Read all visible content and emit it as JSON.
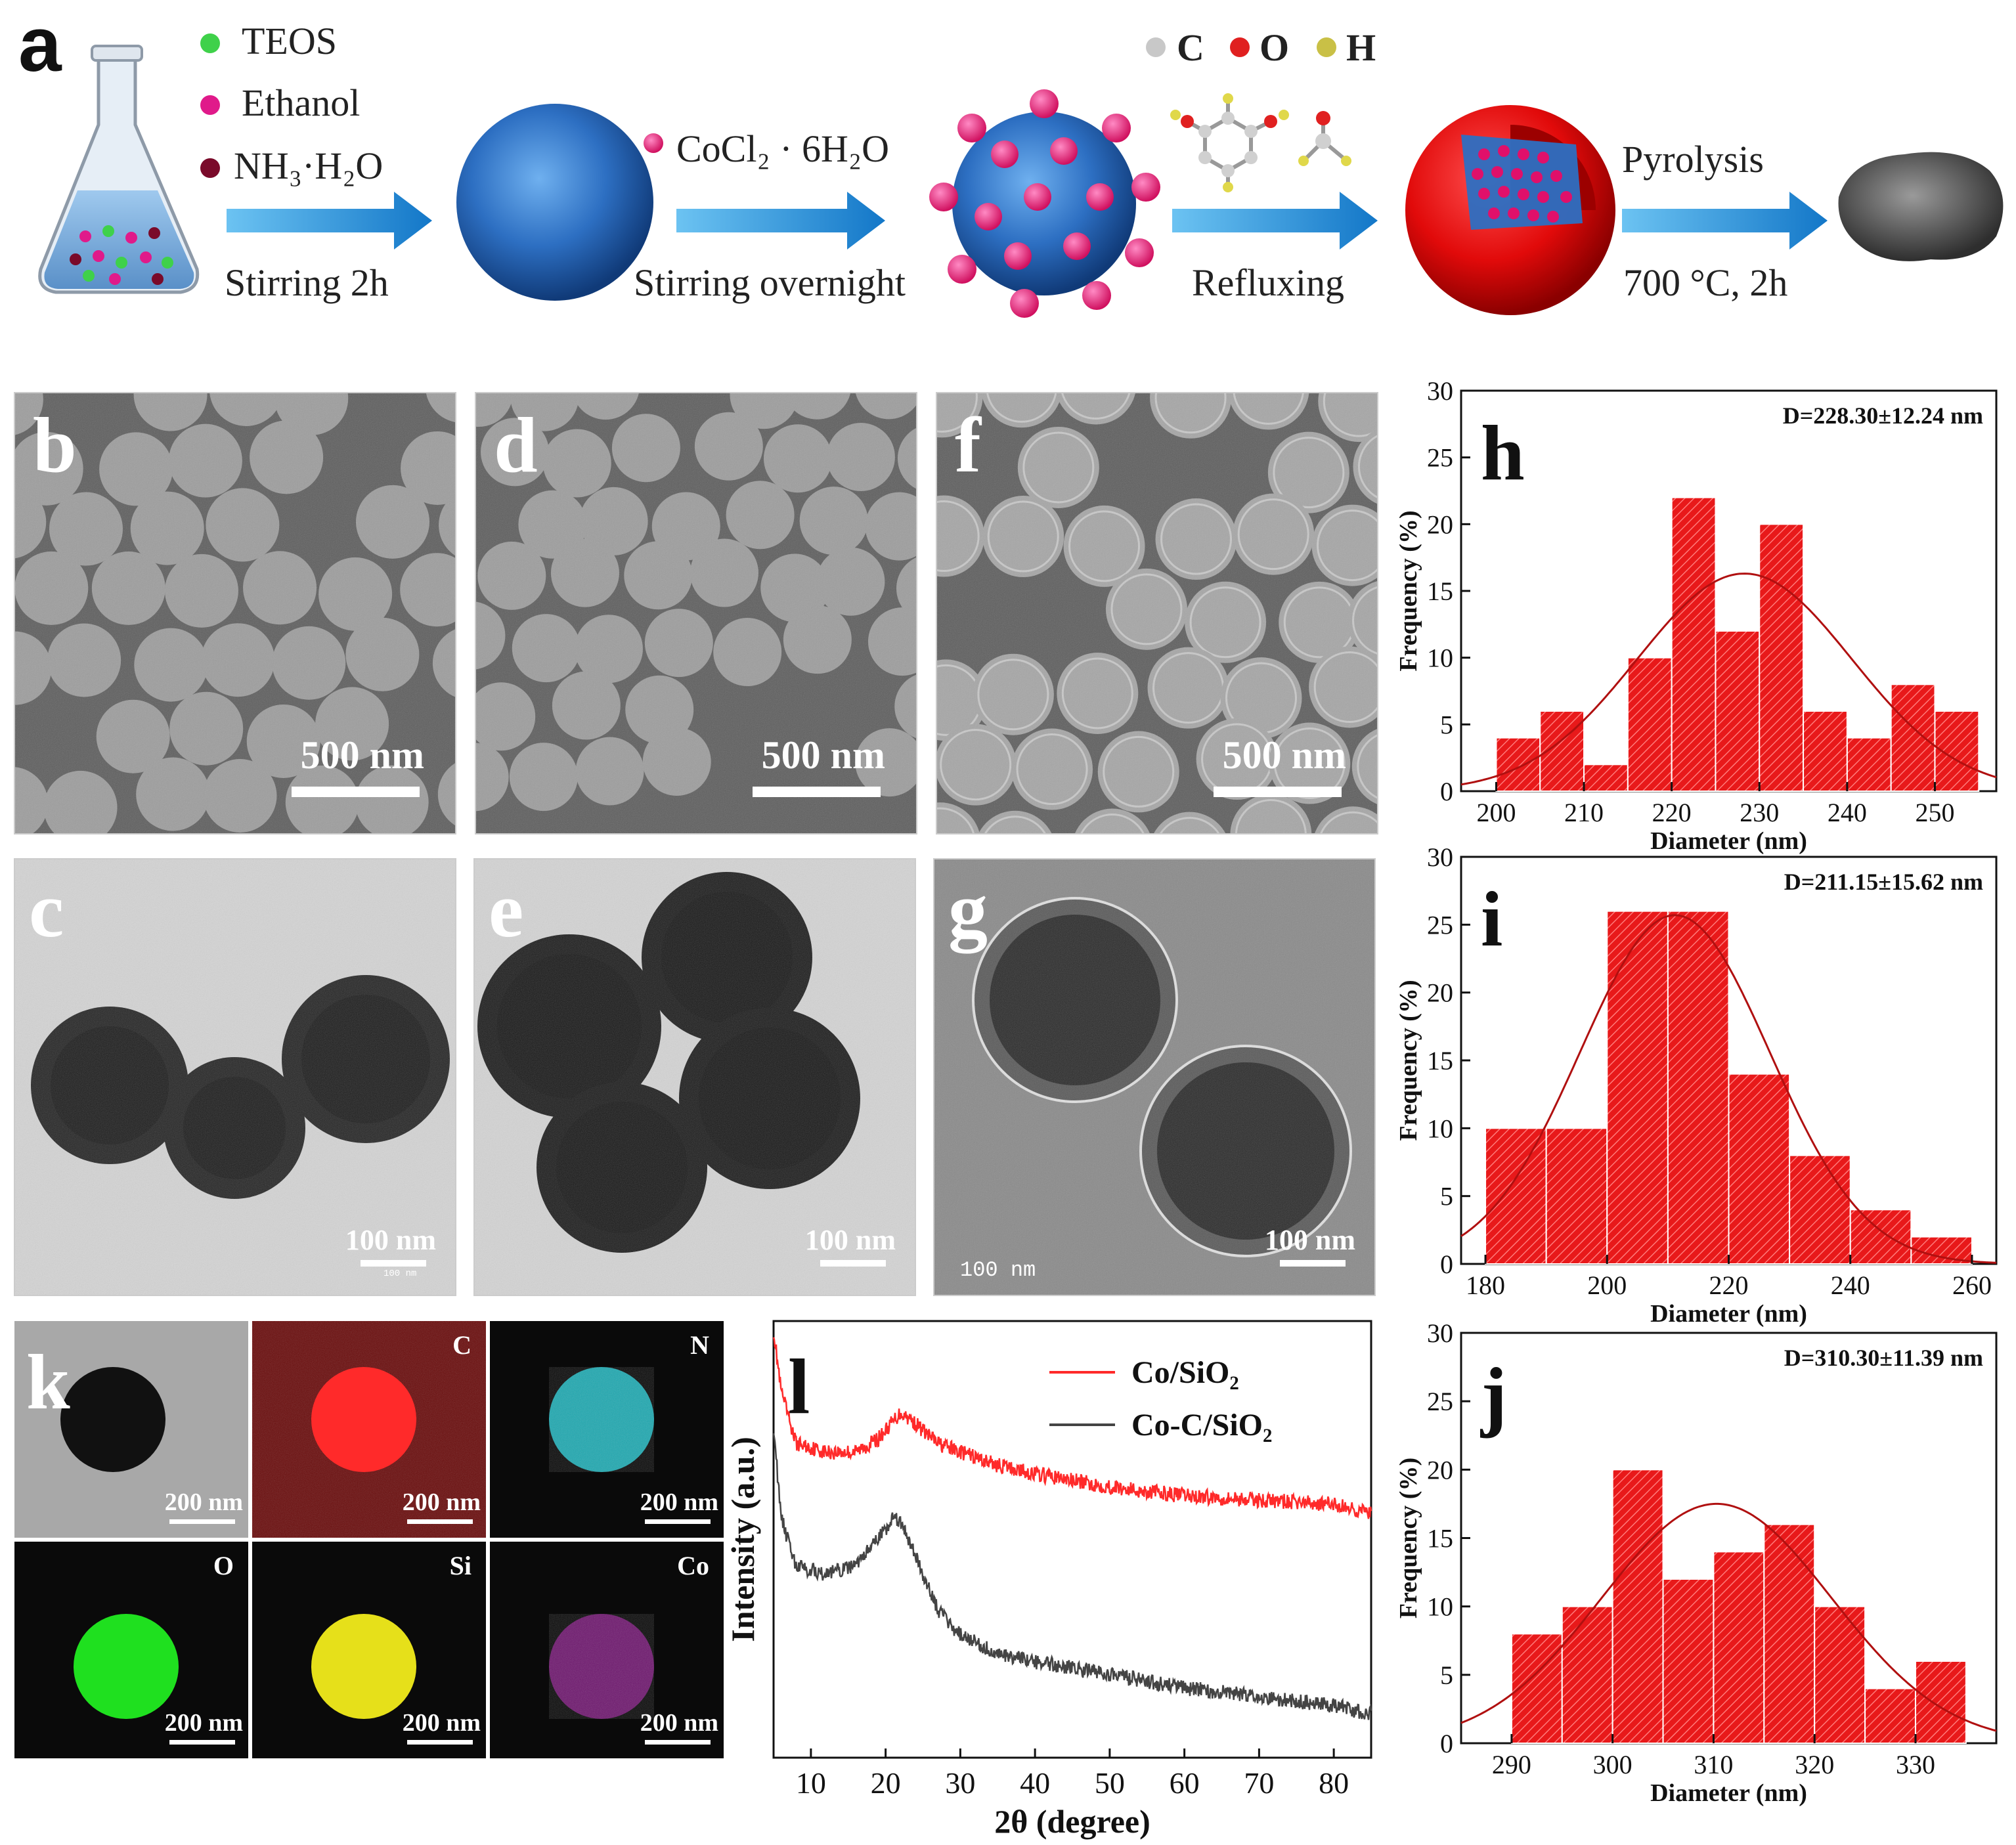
{
  "scheme": {
    "panel_letter": "a",
    "legend_reagents": [
      "TEOS",
      "Ethanol",
      "NH₃·H₂O"
    ],
    "reagent_colors": [
      "#3fd14a",
      "#e01a8a",
      "#7a0a2a"
    ],
    "step1_label": "Stirring 2h",
    "cocl2_label": "CoCl₂ · 6H₂O",
    "step2_label": "Stirring overnight",
    "atom_legend": [
      "C",
      "O",
      "H"
    ],
    "atom_colors": [
      "#c8c8c8",
      "#e02020",
      "#c9c046"
    ],
    "step3_label": "Refluxing",
    "step4_top_label": "Pyrolysis",
    "step4_bottom_label": "700 °C, 2h",
    "arrow_color": "#1f8fd6"
  },
  "sem_panels": [
    {
      "letter": "b",
      "scale": "500 nm"
    },
    {
      "letter": "d",
      "scale": "500 nm"
    },
    {
      "letter": "f",
      "scale": "500 nm"
    }
  ],
  "tem_panels": [
    {
      "letter": "c",
      "scale": "100 nm",
      "small_scale": "100 nm"
    },
    {
      "letter": "e",
      "scale": "100 nm"
    },
    {
      "letter": "g",
      "scale": "100 nm",
      "small_scale": "100 nm"
    }
  ],
  "eds": {
    "letter": "k",
    "tiles": [
      {
        "element": "",
        "color": "#111111",
        "scale": "200 nm"
      },
      {
        "element": "C",
        "color": "#ff2a2a",
        "scale": "200 nm"
      },
      {
        "element": "N",
        "color": "#1fa8b0",
        "scale": "200 nm"
      },
      {
        "element": "O",
        "color": "#1fe01f",
        "scale": "200 nm"
      },
      {
        "element": "Si",
        "color": "#e6e01a",
        "scale": "200 nm"
      },
      {
        "element": "Co",
        "color": "#b020b0",
        "scale": "200 nm"
      }
    ]
  },
  "chart_data": [
    {
      "type": "bar",
      "panel": "h",
      "title": "D=228.30±12.24 nm",
      "xlabel": "Diameter (nm)",
      "ylabel": "Frequency (%)",
      "bin_edges": [
        200,
        205,
        210,
        215,
        220,
        225,
        230,
        235,
        240,
        245,
        250,
        255
      ],
      "values": [
        4,
        6,
        2,
        10,
        22,
        12,
        20,
        6,
        4,
        8,
        6
      ],
      "xlim": [
        196,
        257
      ],
      "ylim": [
        0,
        30
      ],
      "xticks": [
        200,
        210,
        220,
        230,
        240,
        250
      ],
      "yticks": [
        0,
        5,
        10,
        15,
        20,
        25,
        30
      ],
      "fit": {
        "mean": 228.3,
        "sd": 12.24,
        "peak": 16.3
      },
      "bar_color": "#e8191a"
    },
    {
      "type": "bar",
      "panel": "i",
      "title": "D=211.15±15.62 nm",
      "xlabel": "Diameter (nm)",
      "ylabel": "Frequency (%)",
      "bin_edges": [
        180,
        190,
        200,
        210,
        220,
        230,
        240,
        250,
        260
      ],
      "values": [
        10,
        10,
        26,
        26,
        14,
        8,
        4,
        2
      ],
      "xlim": [
        176,
        264
      ],
      "ylim": [
        0,
        30
      ],
      "xticks": [
        180,
        200,
        220,
        240,
        260
      ],
      "yticks": [
        0,
        5,
        10,
        15,
        20,
        25,
        30
      ],
      "fit": {
        "mean": 211.15,
        "sd": 15.62,
        "peak": 25.7
      },
      "bar_color": "#e8191a"
    },
    {
      "type": "bar",
      "panel": "j",
      "title": "D=310.30±11.39 nm",
      "xlabel": "Diameter (nm)",
      "ylabel": "Frequency (%)",
      "bin_edges": [
        290,
        295,
        300,
        305,
        310,
        315,
        320,
        325,
        330,
        335
      ],
      "values": [
        8,
        10,
        20,
        12,
        14,
        16,
        10,
        4,
        6
      ],
      "xlim": [
        285,
        338
      ],
      "ylim": [
        0,
        30
      ],
      "xticks": [
        290,
        300,
        310,
        320,
        330
      ],
      "yticks": [
        0,
        5,
        10,
        15,
        20,
        25,
        30
      ],
      "fit": {
        "mean": 310.3,
        "sd": 11.39,
        "peak": 17.5
      },
      "bar_color": "#e8191a"
    },
    {
      "type": "line",
      "panel": "l",
      "xlabel": "2θ (degree)",
      "ylabel": "Intensity (a.u.)",
      "xlim": [
        5,
        85
      ],
      "xticks": [
        10,
        20,
        30,
        40,
        50,
        60,
        70,
        80
      ],
      "y_ticks_shown": false,
      "series": [
        {
          "name": "Co/SiO₂",
          "color": "#ff2a2a",
          "x": [
            5,
            6,
            8,
            12,
            16,
            19,
            21,
            22,
            23,
            25,
            27,
            30,
            35,
            40,
            50,
            60,
            70,
            80,
            85
          ],
          "y": [
            0.98,
            0.84,
            0.72,
            0.7,
            0.7,
            0.73,
            0.77,
            0.79,
            0.78,
            0.75,
            0.72,
            0.7,
            0.67,
            0.65,
            0.62,
            0.6,
            0.59,
            0.58,
            0.56
          ]
        },
        {
          "name": "Co-C/SiO₂",
          "color": "#444444",
          "x": [
            5,
            6,
            8,
            12,
            16,
            19,
            21,
            22,
            23,
            25,
            27,
            30,
            35,
            40,
            50,
            60,
            70,
            80,
            85
          ],
          "y": [
            0.76,
            0.55,
            0.44,
            0.42,
            0.44,
            0.5,
            0.55,
            0.54,
            0.5,
            0.42,
            0.34,
            0.28,
            0.24,
            0.22,
            0.19,
            0.16,
            0.14,
            0.12,
            0.1
          ]
        }
      ]
    }
  ]
}
